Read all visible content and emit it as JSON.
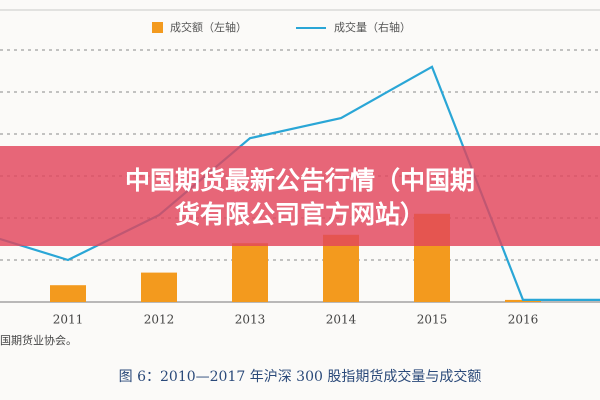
{
  "chart_data": {
    "type": "bar_line",
    "legend": [
      "成交额（左轴）",
      "成交量（右轴）"
    ],
    "categories": [
      null,
      "2011",
      "2012",
      "2013",
      "2014",
      "2015",
      "2016",
      null
    ],
    "series": [
      {
        "name": "成交额（左轴）",
        "type": "bar",
        "color": "#f39a1e",
        "values": [
          null,
          0.4,
          0.7,
          1.4,
          1.6,
          2.1,
          0.05,
          null
        ]
      },
      {
        "name": "成交量（右轴）",
        "type": "line",
        "axis": "y2",
        "color": "#2aa6d6",
        "values": [
          1.67,
          1.0,
          2.07,
          3.9,
          4.38,
          5.6,
          0.05,
          0.05
        ]
      }
    ],
    "ylim": [
      0,
      6
    ],
    "y2lim": [
      0,
      6
    ],
    "source": "国期货业协会。",
    "caption": "图 6：2010—2017 年沪深 300 股指期货成交量与成交额",
    "banner": [
      "中国期货最新公告行情（中国期",
      "货有限公司官方网站）"
    ]
  }
}
